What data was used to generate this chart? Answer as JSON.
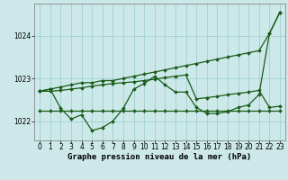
{
  "title": "Graphe pression niveau de la mer (hPa)",
  "background_color": "#cce8e8",
  "grid_color": "#99cccc",
  "line_color": "#1a5c1a",
  "xlim": [
    -0.5,
    23.5
  ],
  "ylim": [
    1021.55,
    1024.75
  ],
  "yticks": [
    1022,
    1023,
    1024
  ],
  "xticks": [
    0,
    1,
    2,
    3,
    4,
    5,
    6,
    7,
    8,
    9,
    10,
    11,
    12,
    13,
    14,
    15,
    16,
    17,
    18,
    19,
    20,
    21,
    22,
    23
  ],
  "series1": [
    1022.7,
    1022.75,
    1022.8,
    1022.85,
    1022.9,
    1022.9,
    1022.95,
    1022.95,
    1023.0,
    1023.05,
    1023.1,
    1023.15,
    1023.2,
    1023.25,
    1023.3,
    1023.35,
    1023.4,
    1023.45,
    1023.5,
    1023.55,
    1023.6,
    1023.65,
    1024.05,
    1024.55
  ],
  "series2": [
    1022.7,
    1022.75,
    1022.3,
    1022.05,
    1022.15,
    1021.78,
    1021.85,
    1022.0,
    1022.3,
    1022.75,
    1022.88,
    1023.05,
    1022.85,
    1022.68,
    1022.68,
    1022.32,
    1022.18,
    1022.18,
    1022.22,
    1022.32,
    1022.38,
    1022.62,
    1024.05,
    1024.55
  ],
  "series3": [
    1022.25,
    1022.25,
    1022.25,
    1022.25,
    1022.25,
    1022.25,
    1022.25,
    1022.25,
    1022.25,
    1022.25,
    1022.25,
    1022.25,
    1022.25,
    1022.25,
    1022.25,
    1022.25,
    1022.25,
    1022.25,
    1022.25,
    1022.25,
    1022.25,
    1022.25,
    1022.25,
    1022.25
  ],
  "series4": [
    1022.7,
    1022.7,
    1022.72,
    1022.75,
    1022.78,
    1022.82,
    1022.85,
    1022.88,
    1022.9,
    1022.92,
    1022.95,
    1022.98,
    1023.02,
    1023.05,
    1023.08,
    1022.52,
    1022.55,
    1022.58,
    1022.62,
    1022.65,
    1022.68,
    1022.72,
    1022.32,
    1022.35
  ],
  "marker": "D",
  "markersize": 2.0,
  "linewidth": 0.9,
  "title_fontsize": 6.5,
  "tick_fontsize": 5.5
}
